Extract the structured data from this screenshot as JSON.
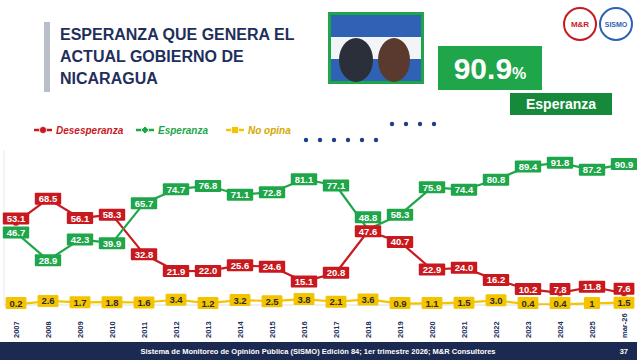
{
  "chart_data": {
    "type": "line",
    "title": "ESPERANZA QUE GENERA EL ACTUAL GOBIERNO DE NICARAGUA",
    "annotations": [
      "90.9%",
      "Esperanza",
      "Sistema de Monitoreo de Opinión Pública (SISMO) Edición 84; 1er trimestre 2026; M&R Consultores",
      "37",
      "M&R",
      "SISMO"
    ],
    "categories": [
      "2007",
      "2008",
      "2009",
      "2010",
      "2011",
      "2012",
      "2013",
      "2014",
      "2015",
      "2016",
      "2017",
      "2018",
      "2019",
      "2020",
      "2021",
      "2022",
      "2023",
      "2024",
      "2025",
      "mar-26"
    ],
    "series": [
      {
        "name": "Desesperanza",
        "color": "#c8191f",
        "marker": "circle",
        "values": [
          53.1,
          68.5,
          56.1,
          58.3,
          32.8,
          21.9,
          22.0,
          25.6,
          24.6,
          15.1,
          20.8,
          47.6,
          40.7,
          22.9,
          24.0,
          16.2,
          10.2,
          7.8,
          11.8,
          7.6
        ],
        "value_labels": [
          "53.1",
          "68.5",
          "56.1",
          "58.3",
          "32.8",
          "21.9",
          "22.0",
          "25.6",
          "24.6",
          "15.1",
          "20.8",
          "47.6",
          "40.7",
          "22.9",
          "24.0",
          "16.2",
          "10.2",
          "7.8",
          "11.8",
          "7.6"
        ]
      },
      {
        "name": "Esperanza",
        "color": "#1fa64a",
        "marker": "diamond",
        "values": [
          46.7,
          28.9,
          42.3,
          39.9,
          65.7,
          74.7,
          76.8,
          71.1,
          72.8,
          81.1,
          77.1,
          48.8,
          58.3,
          75.9,
          74.4,
          80.8,
          89.4,
          91.8,
          87.2,
          90.9
        ],
        "value_labels": [
          "46.7",
          "28.9",
          "42.3",
          "39.9",
          "65.7",
          "74.7",
          "76.8",
          "71.1",
          "72.8",
          "81.1",
          "77.1",
          "48.8",
          "58.3",
          "75.9",
          "74.4",
          "80.8",
          "89.4",
          "91.8",
          "87.2",
          "90.9"
        ]
      },
      {
        "name": "No opina",
        "color": "#f5c400",
        "marker": "square",
        "values": [
          0.2,
          2.6,
          1.7,
          1.8,
          1.6,
          3.4,
          1.2,
          3.2,
          2.5,
          3.8,
          2.1,
          3.6,
          0.9,
          1.1,
          1.5,
          3.0,
          0.4,
          0.4,
          1,
          1.5
        ],
        "value_labels": [
          "0.2",
          "2.6",
          "1.7",
          "1.8",
          "1.6",
          "3.4",
          "1.2",
          "3.2",
          "2.5",
          "3.8",
          "2.1",
          "3.6",
          "0.9",
          "1.1",
          "1.5",
          "3.0",
          "0.4",
          "0.4",
          "1",
          "1.5"
        ]
      }
    ],
    "ylim": [
      0,
      100
    ],
    "grid": false,
    "data_labels": true,
    "tick_labels": "x",
    "legend": "top-left"
  }
}
